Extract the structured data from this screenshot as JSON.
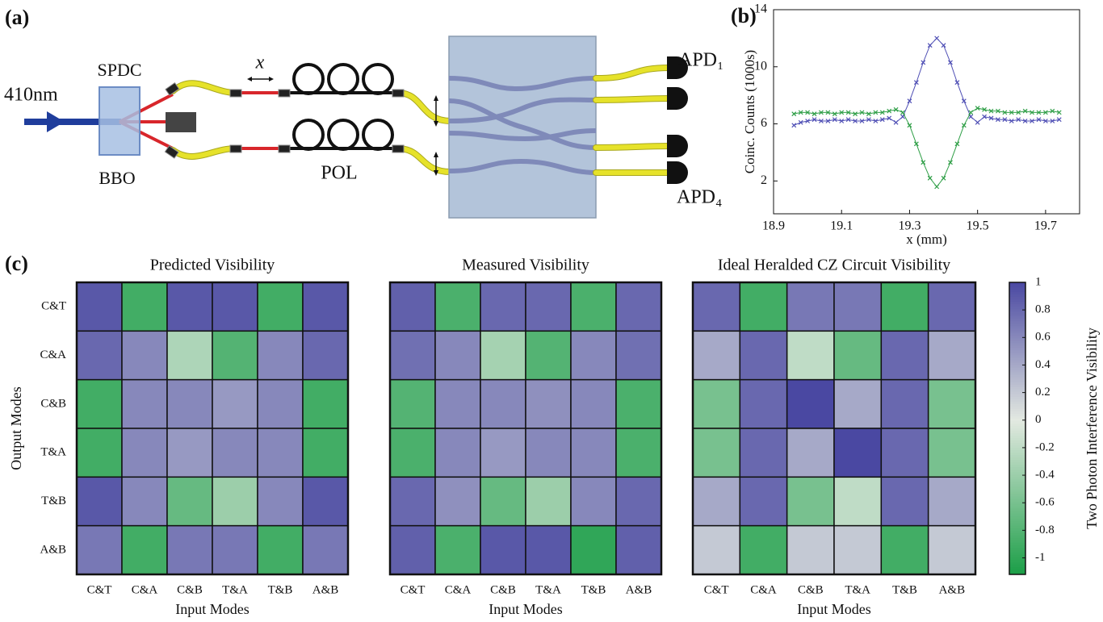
{
  "panel_labels": [
    "(a)",
    "(b)",
    "(c)"
  ],
  "diagram": {
    "pump": "410nm",
    "source": "SPDC",
    "crystal": "BBO",
    "delay": "x",
    "polarization": "POL",
    "detector_top": "APD₁",
    "detector_bottom": "APD₄"
  },
  "chart_data": [
    {
      "type": "line",
      "ylabel": "Coinc. Counts (1000s)",
      "xlabel": "x (mm)",
      "x": [
        18.96,
        18.98,
        19.0,
        19.02,
        19.04,
        19.06,
        19.08,
        19.1,
        19.12,
        19.14,
        19.16,
        19.18,
        19.2,
        19.22,
        19.24,
        19.26,
        19.28,
        19.3,
        19.32,
        19.34,
        19.36,
        19.38,
        19.4,
        19.42,
        19.44,
        19.46,
        19.48,
        19.5,
        19.52,
        19.54,
        19.56,
        19.58,
        19.6,
        19.62,
        19.64,
        19.66,
        19.68,
        19.7,
        19.72,
        19.74
      ],
      "series": [
        {
          "color": "#4f4fb5",
          "values": [
            5.9,
            6.1,
            6.2,
            6.3,
            6.2,
            6.2,
            6.3,
            6.2,
            6.3,
            6.2,
            6.2,
            6.3,
            6.2,
            6.3,
            6.4,
            6.1,
            6.5,
            7.6,
            8.9,
            10.3,
            11.5,
            12.0,
            11.5,
            10.3,
            8.9,
            7.6,
            6.5,
            6.1,
            6.5,
            6.4,
            6.3,
            6.3,
            6.2,
            6.3,
            6.2,
            6.2,
            6.3,
            6.2,
            6.2,
            6.3
          ]
        },
        {
          "color": "#2e9e46",
          "values": [
            6.7,
            6.8,
            6.8,
            6.7,
            6.8,
            6.8,
            6.7,
            6.8,
            6.8,
            6.7,
            6.8,
            6.7,
            6.8,
            6.8,
            6.9,
            7.0,
            6.8,
            5.9,
            4.6,
            3.3,
            2.2,
            1.6,
            2.2,
            3.3,
            4.6,
            5.9,
            6.8,
            7.1,
            7.0,
            6.9,
            6.9,
            6.8,
            6.8,
            6.8,
            6.9,
            6.8,
            6.8,
            6.8,
            6.9,
            6.8
          ]
        }
      ],
      "xlim": [
        18.9,
        19.8
      ],
      "xticks": [
        18.9,
        19.1,
        19.3,
        19.5,
        19.7
      ],
      "ylim": [
        -0.3,
        14
      ],
      "yticks": [
        2,
        6,
        10,
        14
      ]
    },
    {
      "type": "heatmap",
      "title": "Predicted Visibility",
      "xlabel": "Input Modes",
      "ylabel": "Output Modes",
      "categories": [
        "C&T",
        "C&A",
        "C&B",
        "T&A",
        "T&B",
        "A&B"
      ],
      "rows": [
        "C&T",
        "C&A",
        "C&B",
        "T&A",
        "T&B",
        "A&B"
      ],
      "values": [
        [
          0.9,
          -0.9,
          0.9,
          0.9,
          -0.9,
          0.9
        ],
        [
          0.8,
          0.6,
          -0.3,
          -0.8,
          0.6,
          0.8
        ],
        [
          -0.9,
          0.6,
          0.6,
          0.5,
          0.6,
          -0.9
        ],
        [
          -0.9,
          0.6,
          0.5,
          0.6,
          0.6,
          -0.9
        ],
        [
          0.9,
          0.6,
          -0.7,
          -0.4,
          0.6,
          0.9
        ],
        [
          0.7,
          -0.9,
          0.7,
          0.7,
          -0.9,
          0.7
        ]
      ]
    },
    {
      "type": "heatmap",
      "title": "Measured Visibility",
      "xlabel": "Input Modes",
      "categories": [
        "C&T",
        "C&A",
        "C&B",
        "T&A",
        "T&B",
        "A&B"
      ],
      "values": [
        [
          0.85,
          -0.85,
          0.8,
          0.8,
          -0.85,
          0.8
        ],
        [
          0.75,
          0.6,
          -0.35,
          -0.8,
          0.6,
          0.75
        ],
        [
          -0.8,
          0.6,
          0.6,
          0.55,
          0.6,
          -0.85
        ],
        [
          -0.85,
          0.6,
          0.5,
          0.6,
          0.6,
          -0.85
        ],
        [
          0.8,
          0.55,
          -0.7,
          -0.4,
          0.6,
          0.8
        ],
        [
          0.85,
          -0.85,
          0.9,
          0.9,
          -1.0,
          0.85
        ]
      ]
    },
    {
      "type": "heatmap",
      "title": "Ideal Heralded CZ Circuit Visibility",
      "xlabel": "Input Modes",
      "categories": [
        "C&T",
        "C&A",
        "C&B",
        "T&A",
        "T&B",
        "A&B"
      ],
      "values": [
        [
          0.8,
          -0.9,
          0.7,
          0.7,
          -0.9,
          0.8
        ],
        [
          0.4,
          0.8,
          -0.2,
          -0.7,
          0.8,
          0.4
        ],
        [
          -0.6,
          0.8,
          1.0,
          0.4,
          0.8,
          -0.6
        ],
        [
          -0.6,
          0.8,
          0.4,
          1.0,
          0.8,
          -0.6
        ],
        [
          0.4,
          0.8,
          -0.6,
          -0.2,
          0.8,
          0.4
        ],
        [
          0.2,
          -0.9,
          0.2,
          0.2,
          -0.9,
          0.2
        ]
      ]
    },
    {
      "type": "colorbar",
      "label": "Two Photon Interference Visibility",
      "zlim": [
        -1.12,
        1
      ],
      "colors": [
        "#1b9e47",
        "#e3e9e1",
        "#4a48a2"
      ],
      "ticks": [
        1,
        0.8,
        0.6,
        0.4,
        0.2,
        0,
        -0.2,
        -0.4,
        -0.6,
        -0.8,
        -1
      ]
    }
  ]
}
